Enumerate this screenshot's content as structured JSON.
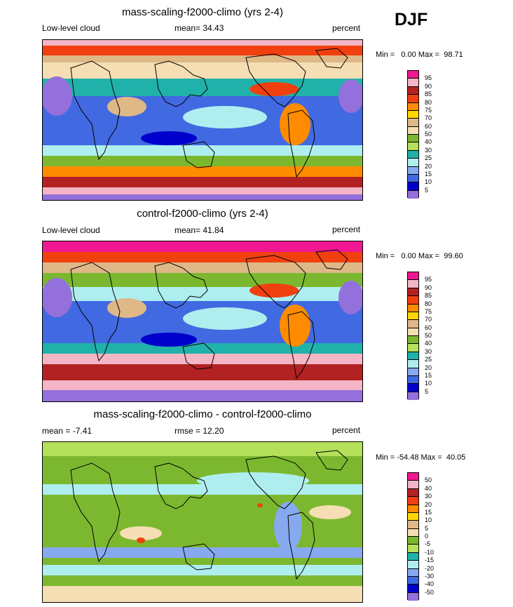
{
  "season": "DJF",
  "panels": [
    {
      "title": "mass-scaling-f2000-climo (yrs 2-4)",
      "left": "Low-level cloud",
      "center": "mean=  34.43",
      "right": "percent",
      "minmax": "Min =   0.00 Max =  98.71",
      "levels": [
        "95",
        "90",
        "85",
        "80",
        "75",
        "70",
        "60",
        "50",
        "40",
        "30",
        "25",
        "20",
        "15",
        "10",
        "5"
      ],
      "colors": [
        "#f01890",
        "#f4b6c6",
        "#b22222",
        "#f04010",
        "#ff8c00",
        "#ffd700",
        "#deb887",
        "#f5deb3",
        "#7cb82f",
        "#b4e05a",
        "#20b2aa",
        "#afeeee",
        "#87a9f0",
        "#4169e1",
        "#0000cd",
        "#9370db"
      ],
      "scheme": "abs"
    },
    {
      "title": "control-f2000-climo (yrs 2-4)",
      "left": "Low-level cloud",
      "center": "mean=  41.84",
      "right": "percent",
      "minmax": "Min =   0.00 Max =  99.60",
      "levels": [
        "95",
        "90",
        "85",
        "80",
        "75",
        "70",
        "60",
        "50",
        "40",
        "30",
        "25",
        "20",
        "15",
        "10",
        "5"
      ],
      "colors": [
        "#f01890",
        "#f4b6c6",
        "#b22222",
        "#f04010",
        "#ff8c00",
        "#ffd700",
        "#deb887",
        "#f5deb3",
        "#7cb82f",
        "#b4e05a",
        "#20b2aa",
        "#afeeee",
        "#87a9f0",
        "#4169e1",
        "#0000cd",
        "#9370db"
      ],
      "scheme": "abs2"
    },
    {
      "title": "mass-scaling-f2000-climo - control-f2000-climo",
      "left": "mean =  -7.41",
      "center": "rmse =  12.20",
      "right": "percent",
      "minmax": "Min = -54.48 Max =  40.05",
      "levels": [
        "50",
        "40",
        "30",
        "20",
        "15",
        "10",
        "5",
        "0",
        "-5",
        "-10",
        "-15",
        "-20",
        "-30",
        "-40",
        "-50"
      ],
      "colors": [
        "#f01890",
        "#f4b6c6",
        "#b22222",
        "#f04010",
        "#ff8c00",
        "#ffd700",
        "#deb887",
        "#f5deb3",
        "#7cb82f",
        "#b4e05a",
        "#20b2aa",
        "#afeeee",
        "#87a9f0",
        "#4169e1",
        "#0000cd",
        "#9370db"
      ],
      "scheme": "diff"
    }
  ]
}
